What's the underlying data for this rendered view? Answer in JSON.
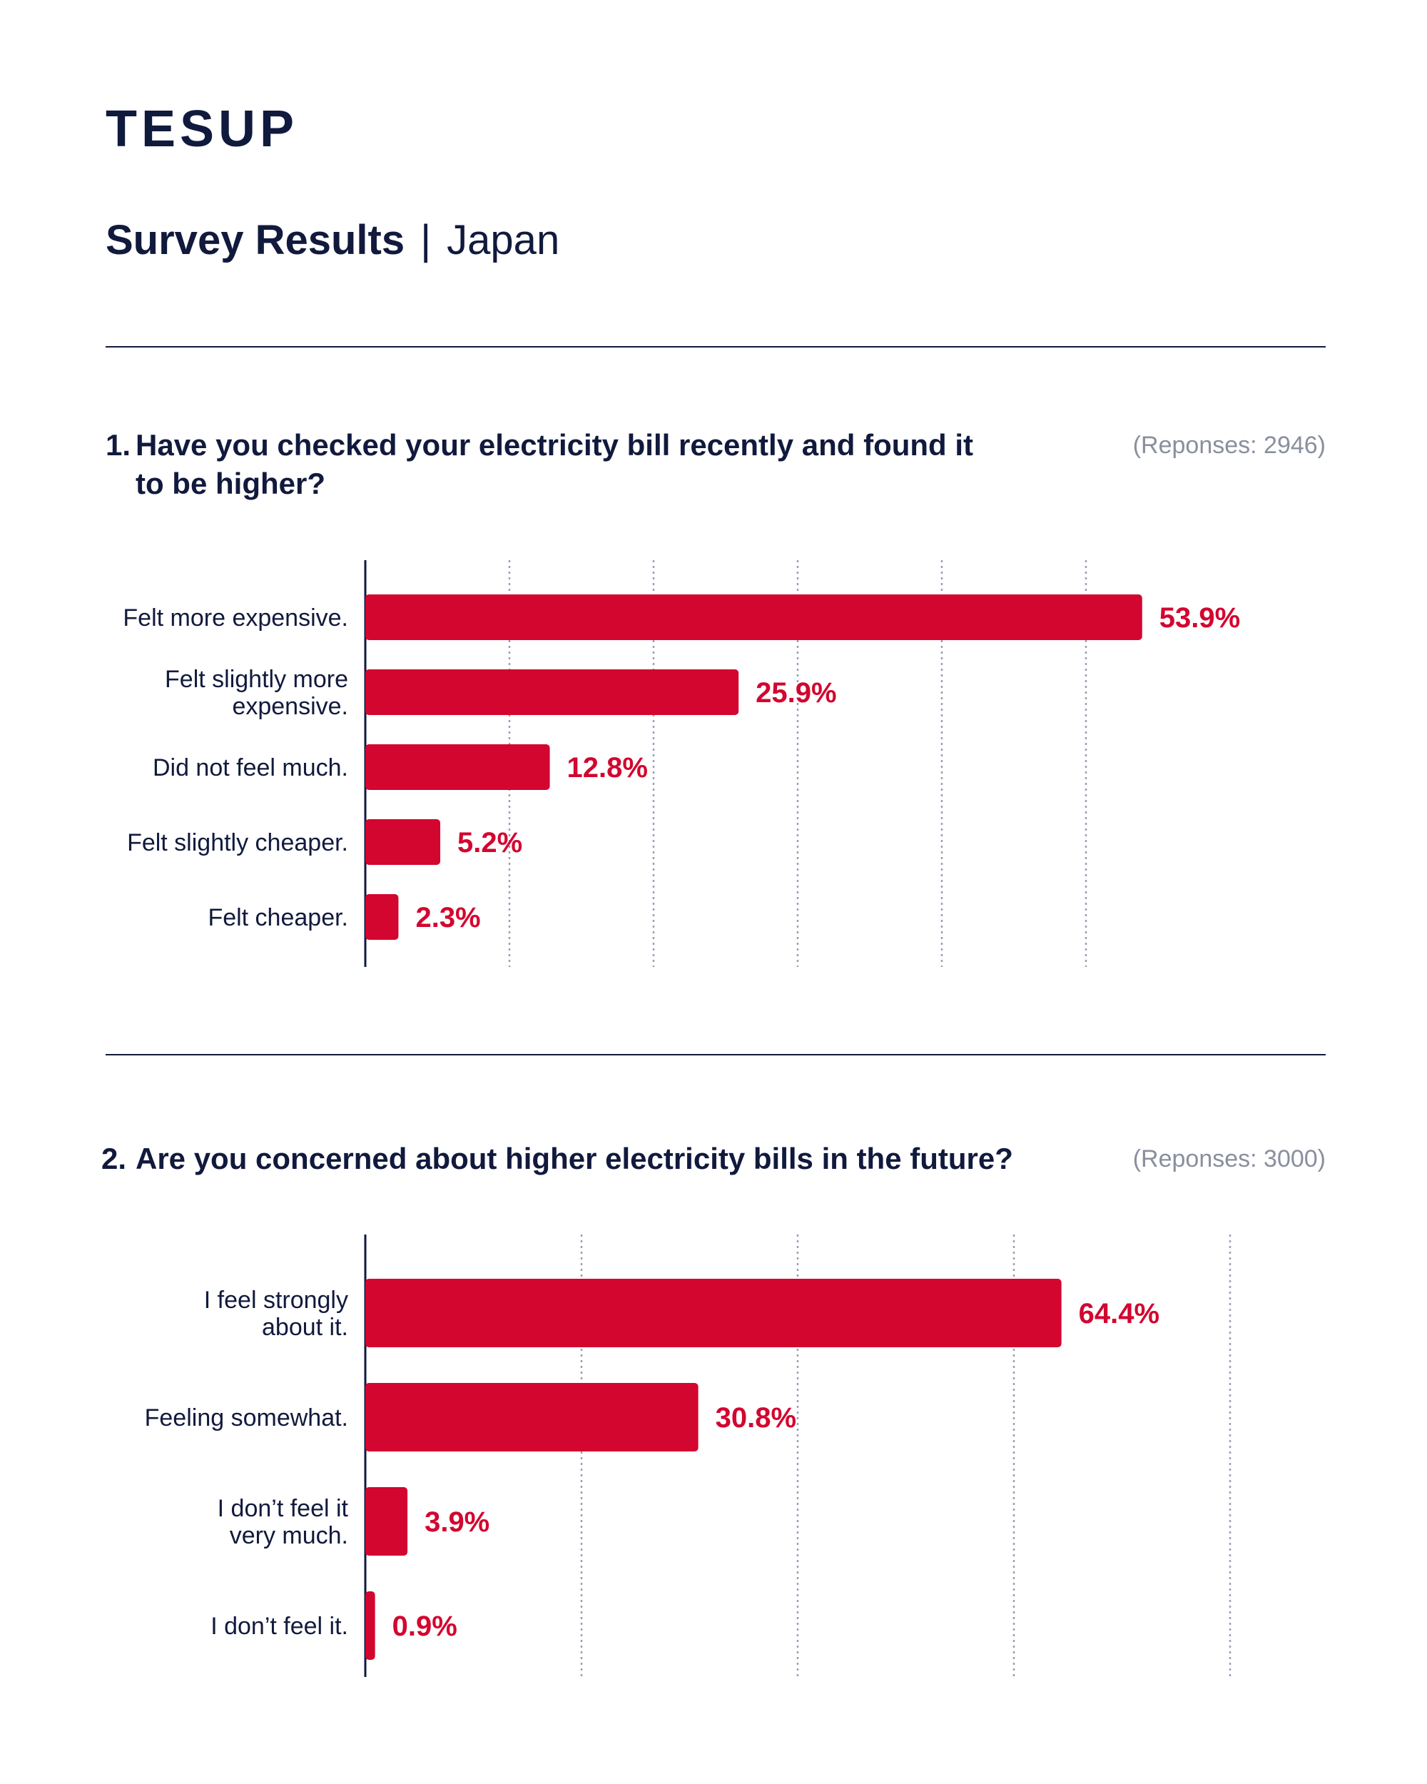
{
  "brand": {
    "logo_text": "TESUP"
  },
  "header": {
    "title_strong": "Survey Results",
    "separator": "|",
    "title_light": "Japan"
  },
  "colors": {
    "bar": "#d3062f",
    "text": "#111a3d",
    "muted": "#8a8f9e",
    "grid": "#9aa0b6"
  },
  "questions": [
    {
      "number": "1.",
      "text": "Have you checked your electricity bill recently and found it to be higher?",
      "responses": "(Reponses: 2946)"
    },
    {
      "number": "2.",
      "text": "Are you concerned about higher electricity bills in the future?",
      "responses": "(Reponses: 3000)"
    }
  ],
  "chart_data": [
    {
      "type": "bar",
      "orientation": "horizontal",
      "categories": [
        [
          "Felt more expensive."
        ],
        [
          "Felt slightly more",
          "expensive."
        ],
        [
          "Did not feel much."
        ],
        [
          "Felt slightly cheaper."
        ],
        [
          "Felt cheaper."
        ]
      ],
      "values": [
        53.9,
        25.9,
        12.8,
        5.2,
        2.3
      ],
      "value_labels": [
        "53.9%",
        "25.9%",
        "12.8%",
        "5.2%",
        "2.3%"
      ],
      "xlim": [
        0,
        60
      ],
      "gridlines": [
        10,
        20,
        30,
        40,
        50
      ],
      "grid": true
    },
    {
      "type": "bar",
      "orientation": "horizontal",
      "categories": [
        [
          "I feel strongly",
          "about it."
        ],
        [
          "Feeling somewhat."
        ],
        [
          "I don’t feel it",
          "very much."
        ],
        [
          "I don’t feel it."
        ]
      ],
      "values": [
        64.4,
        30.8,
        3.9,
        0.9
      ],
      "value_labels": [
        "64.4%",
        "30.8%",
        "3.9%",
        "0.9%"
      ],
      "xlim": [
        0,
        80
      ],
      "gridlines": [
        20,
        40,
        60,
        80
      ],
      "grid": true
    }
  ]
}
